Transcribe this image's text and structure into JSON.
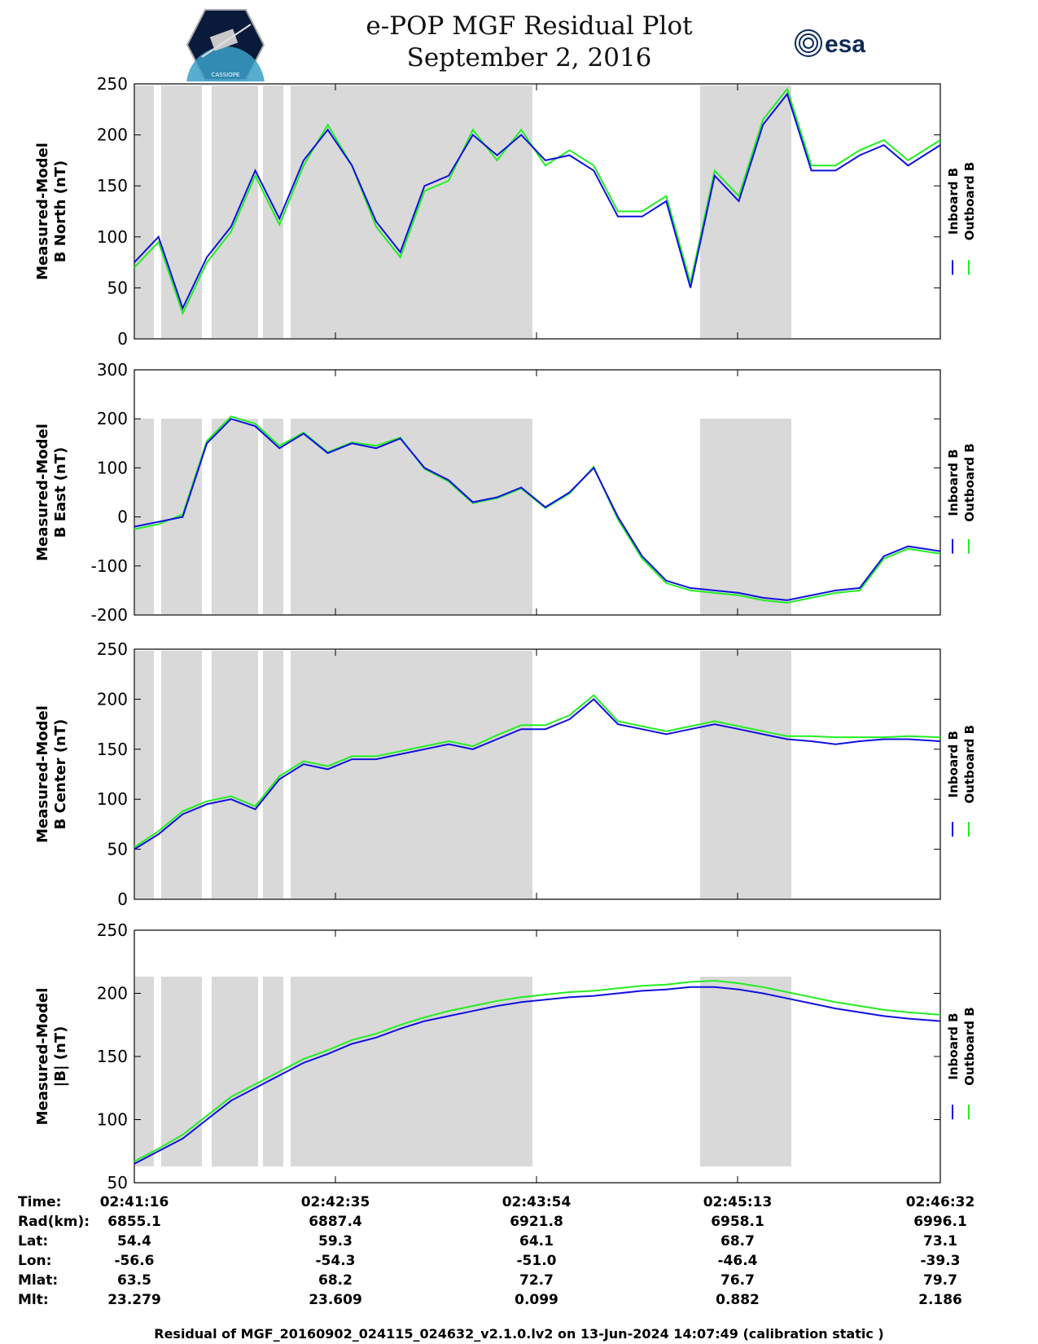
{
  "header": {
    "title_line1": "e-POP MGF Residual Plot",
    "title_line2": "September 2, 2016",
    "logo_left_text": "CASSIOPE",
    "logo_right_text": "esa"
  },
  "colors": {
    "inboard": "#1010e0",
    "outboard": "#22ee22",
    "shade": "#d9d9d9",
    "axis": "#000000"
  },
  "chart_data": [
    {
      "type": "line",
      "ylabel_line1": "Measured-Model",
      "ylabel_line2": "B North (nT)",
      "ylim": [
        0,
        250
      ],
      "yticks": [
        "0",
        "50",
        "100",
        "150",
        "200",
        "250"
      ],
      "legend": [
        "Inboard B",
        "Outboard B"
      ],
      "x": [
        0,
        3,
        6,
        9,
        12,
        15,
        18,
        21,
        24,
        27,
        30,
        33,
        36,
        39,
        42,
        45,
        48,
        51,
        54,
        57,
        60,
        63,
        66,
        69,
        72,
        75,
        78,
        81,
        84,
        87,
        90,
        93,
        96,
        100
      ],
      "inboard": [
        75,
        100,
        30,
        80,
        110,
        165,
        118,
        175,
        205,
        170,
        115,
        85,
        150,
        160,
        200,
        180,
        200,
        175,
        180,
        165,
        120,
        120,
        135,
        50,
        160,
        135,
        210,
        240,
        165,
        165,
        180,
        190,
        170,
        190
      ],
      "outboard": [
        70,
        95,
        25,
        75,
        105,
        160,
        112,
        170,
        210,
        170,
        110,
        80,
        145,
        155,
        205,
        175,
        205,
        170,
        185,
        170,
        125,
        125,
        140,
        55,
        165,
        140,
        215,
        245,
        170,
        170,
        185,
        195,
        175,
        195
      ]
    },
    {
      "type": "line",
      "ylabel_line1": "Measured-Model",
      "ylabel_line2": "B East (nT)",
      "ylim": [
        -200,
        300
      ],
      "yticks": [
        "-200",
        "-100",
        "0",
        "100",
        "200",
        "300"
      ],
      "legend": [
        "Inboard B",
        "Outboard B"
      ],
      "x": [
        0,
        3,
        6,
        9,
        12,
        15,
        18,
        21,
        24,
        27,
        30,
        33,
        36,
        39,
        42,
        45,
        48,
        51,
        54,
        57,
        60,
        63,
        66,
        69,
        72,
        75,
        78,
        81,
        84,
        87,
        90,
        93,
        96,
        100
      ],
      "inboard": [
        -20,
        -10,
        0,
        150,
        200,
        185,
        140,
        170,
        130,
        150,
        140,
        160,
        100,
        75,
        30,
        40,
        60,
        20,
        50,
        100,
        0,
        -80,
        -130,
        -145,
        -150,
        -155,
        -165,
        -170,
        -160,
        -150,
        -145,
        -80,
        -60,
        -70
      ],
      "outboard": [
        -25,
        -15,
        5,
        155,
        205,
        190,
        145,
        172,
        132,
        152,
        145,
        162,
        98,
        72,
        28,
        38,
        58,
        18,
        48,
        102,
        -5,
        -85,
        -135,
        -150,
        -155,
        -160,
        -170,
        -175,
        -165,
        -155,
        -150,
        -85,
        -65,
        -75
      ]
    },
    {
      "type": "line",
      "ylabel_line1": "Measured-Model",
      "ylabel_line2": "B Center (nT)",
      "ylim": [
        0,
        250
      ],
      "yticks": [
        "0",
        "50",
        "100",
        "150",
        "200",
        "250"
      ],
      "legend": [
        "Inboard B",
        "Outboard B"
      ],
      "x": [
        0,
        3,
        6,
        9,
        12,
        15,
        18,
        21,
        24,
        27,
        30,
        33,
        36,
        39,
        42,
        45,
        48,
        51,
        54,
        57,
        60,
        63,
        66,
        69,
        72,
        75,
        78,
        81,
        84,
        87,
        90,
        93,
        96,
        100
      ],
      "inboard": [
        50,
        65,
        85,
        95,
        100,
        90,
        120,
        135,
        130,
        140,
        140,
        145,
        150,
        155,
        150,
        160,
        170,
        170,
        180,
        200,
        175,
        170,
        165,
        170,
        175,
        170,
        165,
        160,
        158,
        155,
        158,
        160,
        160,
        158
      ],
      "outboard": [
        52,
        68,
        88,
        98,
        103,
        93,
        123,
        138,
        133,
        143,
        143,
        148,
        153,
        158,
        153,
        164,
        174,
        174,
        184,
        204,
        178,
        173,
        168,
        173,
        178,
        173,
        168,
        163,
        163,
        162,
        162,
        162,
        163,
        162
      ]
    },
    {
      "type": "line",
      "ylabel_line1": "Measured-Model",
      "ylabel_line2": "|B| (nT)",
      "ylim": [
        50,
        250
      ],
      "yticks": [
        "50",
        "100",
        "150",
        "200",
        "250"
      ],
      "legend": [
        "Inboard B",
        "Outboard B"
      ],
      "x": [
        0,
        3,
        6,
        9,
        12,
        15,
        18,
        21,
        24,
        27,
        30,
        33,
        36,
        39,
        42,
        45,
        48,
        51,
        54,
        57,
        60,
        63,
        66,
        69,
        72,
        75,
        78,
        81,
        84,
        87,
        90,
        93,
        96,
        100
      ],
      "inboard": [
        65,
        75,
        85,
        100,
        115,
        125,
        135,
        145,
        152,
        160,
        165,
        172,
        178,
        182,
        186,
        190,
        193,
        195,
        197,
        198,
        200,
        202,
        203,
        205,
        205,
        203,
        200,
        196,
        192,
        188,
        185,
        182,
        180,
        178
      ],
      "outboard": [
        67,
        77,
        88,
        103,
        118,
        128,
        138,
        148,
        155,
        163,
        168,
        175,
        181,
        186,
        190,
        194,
        197,
        199,
        201,
        202,
        204,
        206,
        207,
        209,
        210,
        208,
        205,
        201,
        197,
        193,
        190,
        187,
        185,
        183
      ]
    }
  ],
  "info_table": {
    "labels": [
      "Time:",
      "Rad(km):",
      "Lat:",
      "Lon:",
      "Mlat:",
      "Mlt:"
    ],
    "columns": [
      [
        "02:41:16",
        "6855.1",
        "54.4",
        "-56.6",
        "63.5",
        "23.279"
      ],
      [
        "02:42:35",
        "6887.4",
        "59.3",
        "-54.3",
        "68.2",
        "23.609"
      ],
      [
        "02:43:54",
        "6921.8",
        "64.1",
        "-51.0",
        "72.7",
        "0.099"
      ],
      [
        "02:45:13",
        "6958.1",
        "68.7",
        "-46.4",
        "76.7",
        "0.882"
      ],
      [
        "02:46:32",
        "6996.1",
        "73.1",
        "-39.3",
        "79.7",
        "2.186"
      ]
    ]
  },
  "footer": "Residual of MGF_20160902_024115_024632_v2.1.0.lv2 on 13-Jun-2024 14:07:49 (calibration static )"
}
